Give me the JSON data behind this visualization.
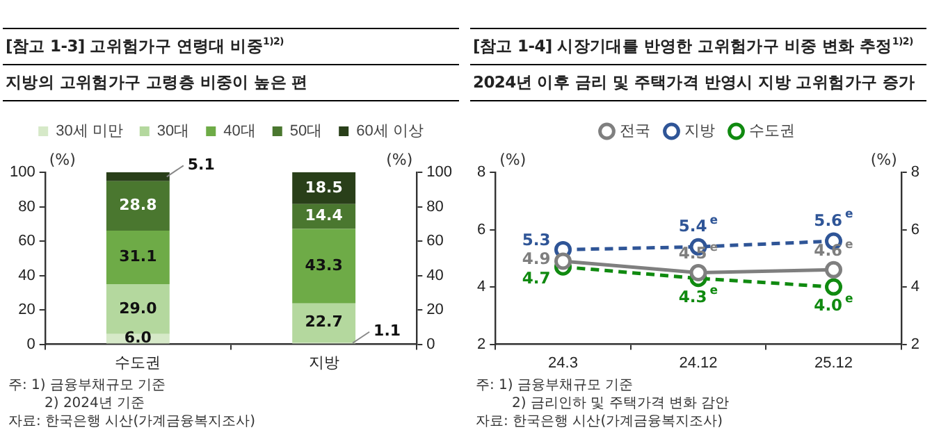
{
  "chart_data": [
    {
      "type": "bar",
      "title": "[참고 1-3] 고위험가구 연령대 비중$^{1)2)}$",
      "subtitle": "지방의 고위험가구 고령층 비중이 높은 편",
      "ylabel": "(%)",
      "y2label": "(%)",
      "categories": [
        "수도권",
        "지방"
      ],
      "stacked": true,
      "series": [
        {
          "name": "30세 미만",
          "color": "#d6e9c8",
          "values": [
            6.0,
            1.1
          ],
          "value_labels": [
            "6.0",
            "1.1"
          ]
        },
        {
          "name": "30대",
          "color": "#b4d89e",
          "values": [
            29.0,
            22.7
          ],
          "value_labels": [
            "29.0",
            "22.7"
          ]
        },
        {
          "name": "40대",
          "color": "#6eab47",
          "values": [
            31.1,
            43.3
          ],
          "value_labels": [
            "31.1",
            "43.3"
          ]
        },
        {
          "name": "50대",
          "color": "#4a772f",
          "values": [
            28.8,
            14.4
          ],
          "value_labels": [
            "28.8",
            "14.4"
          ]
        },
        {
          "name": "60세 이상",
          "color": "#293f19",
          "values": [
            5.1,
            18.5
          ],
          "value_labels": [
            "5.1",
            "18.5"
          ]
        }
      ],
      "ylim": [
        0,
        100
      ],
      "yticks": [
        0,
        20,
        40,
        60,
        80,
        100
      ],
      "y2lim": [
        0,
        100
      ],
      "y2ticks": [
        0,
        20,
        40,
        60,
        80,
        100
      ],
      "grid": false,
      "legend": "top",
      "annotations": [
        "주: 1) 금융부채규모 기준",
        "2) 2024년 기준",
        "자료: 한국은행 시산(가계금융복지조사)"
      ]
    },
    {
      "type": "line",
      "title": "[참고 1-4] 시장기대를 반영한 고위험가구 비중 변화 추정$^{1)2)}$",
      "subtitle": "2024년 이후 금리 및 주택가격 반영시 지방 고위험가구 증가",
      "ylabel": "(%)",
      "y2label": "(%)",
      "categories": [
        "24.3",
        "24.12",
        "25.12"
      ],
      "series": [
        {
          "name": "전국",
          "color": "#7f7f7f",
          "values": [
            4.9,
            4.5,
            4.6
          ],
          "value_labels": [
            "4.9",
            "4.5$^{e}$",
            "4.6$^{e}$"
          ],
          "line_style": "solid"
        },
        {
          "name": "지방",
          "color": "#2f5597",
          "values": [
            5.3,
            5.4,
            5.6
          ],
          "value_labels": [
            "5.3",
            "5.4$^{e}$",
            "5.6$^{e}$"
          ],
          "line_style": "dashed"
        },
        {
          "name": "수도권",
          "color": "#108a10",
          "values": [
            4.7,
            4.3,
            4.0
          ],
          "value_labels": [
            "4.7",
            "4.3$^{e}$",
            "4.0$^{e}$"
          ],
          "line_style": "dashed"
        }
      ],
      "ylim": [
        2,
        8
      ],
      "yticks": [
        2,
        4,
        6,
        8
      ],
      "y2lim": [
        2,
        8
      ],
      "y2ticks": [
        2,
        4,
        6,
        8
      ],
      "grid": false,
      "legend": "top",
      "marker": "circle",
      "annotations": [
        "주: 1) 금융부채규모 기준",
        "2) 금리인하 및 주택가격 변화 감안",
        "자료: 한국은행 시산(가계금융복지조사)"
      ]
    }
  ]
}
